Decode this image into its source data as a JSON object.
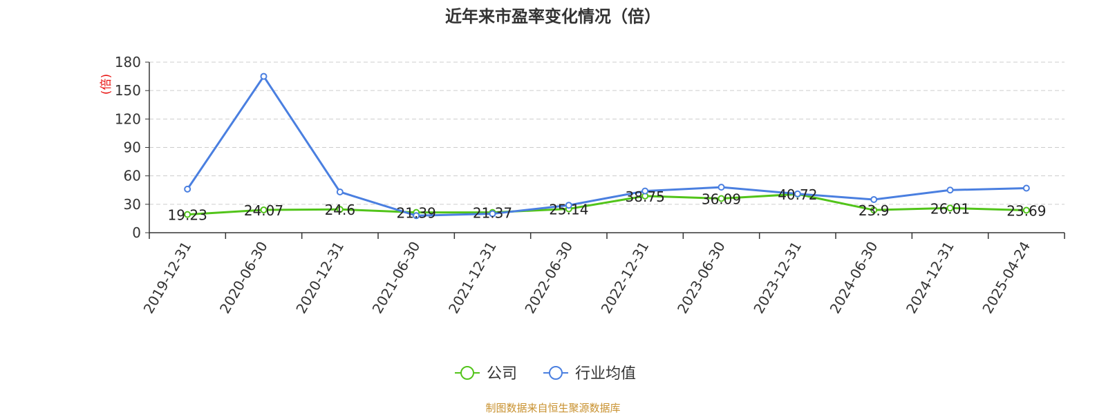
{
  "colors": {
    "company": "#52c41a",
    "industry": "#4a7fe0",
    "axis": "#333333",
    "grid": "#cccccc",
    "ylabel": "#e8110f",
    "source": "#c8912f"
  },
  "source_note": "制图数据来自恒生聚源数据库",
  "chart_data": {
    "type": "line",
    "title": "近年来市盈率变化情况（倍）",
    "ylabel": "(倍)",
    "xlabel": "",
    "categories": [
      "2019-12-31",
      "2020-06-30",
      "2020-12-31",
      "2021-06-30",
      "2021-12-31",
      "2022-06-30",
      "2022-12-31",
      "2023-06-30",
      "2023-12-31",
      "2024-06-30",
      "2024-12-31",
      "2025-04-24"
    ],
    "ylim": [
      0,
      180
    ],
    "yticks": [
      0,
      30,
      60,
      90,
      120,
      150,
      180
    ],
    "grid": true,
    "legend_position": "bottom",
    "series": [
      {
        "name": "公司",
        "values": [
          19.23,
          24.07,
          24.6,
          21.39,
          21.37,
          25.14,
          38.75,
          36.09,
          40.72,
          23.9,
          26.01,
          23.69
        ],
        "labels": [
          "19.23",
          "24.07",
          "24.6",
          "21.39",
          "21.37",
          "25.14",
          "38.75",
          "36.09",
          "40.72",
          "23.9",
          "26.01",
          "23.69"
        ]
      },
      {
        "name": "行业均值",
        "values": [
          46,
          165,
          43,
          18,
          20,
          29,
          44,
          48,
          41,
          35,
          45,
          47
        ]
      }
    ]
  }
}
